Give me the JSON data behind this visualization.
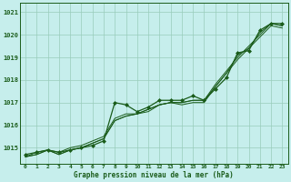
{
  "xlabel": "Graphe pression niveau de la mer (hPa)",
  "background_color": "#c6eeec",
  "grid_color": "#99ccbb",
  "line_color": "#1a5c1a",
  "marker_color": "#1a5c1a",
  "ylim": [
    1014.3,
    1021.4
  ],
  "xlim": [
    -0.5,
    23.5
  ],
  "yticks": [
    1015,
    1016,
    1017,
    1018,
    1019,
    1020,
    1021
  ],
  "xticks": [
    0,
    1,
    2,
    3,
    4,
    5,
    6,
    7,
    8,
    9,
    10,
    11,
    12,
    13,
    14,
    15,
    16,
    17,
    18,
    19,
    20,
    21,
    22,
    23
  ],
  "series": [
    [
      1014.7,
      1014.8,
      1014.9,
      1014.8,
      1014.9,
      1015.0,
      1015.1,
      1015.3,
      1017.0,
      1016.9,
      1016.6,
      1016.8,
      1017.1,
      1017.1,
      1017.1,
      1017.3,
      1017.1,
      1017.6,
      1018.1,
      1019.2,
      1019.3,
      1020.2,
      1020.5,
      1020.5
    ],
    [
      1014.6,
      1014.8,
      1014.9,
      1014.8,
      1015.0,
      1015.1,
      1015.3,
      1015.5,
      1016.3,
      1016.5,
      1016.5,
      1016.7,
      1016.9,
      1017.0,
      1017.0,
      1017.1,
      1017.1,
      1017.7,
      1018.3,
      1019.1,
      1019.4,
      1020.1,
      1020.5,
      1020.4
    ],
    [
      1014.6,
      1014.7,
      1014.9,
      1014.7,
      1014.9,
      1015.0,
      1015.2,
      1015.4,
      1016.2,
      1016.4,
      1016.5,
      1016.7,
      1016.9,
      1017.0,
      1017.0,
      1017.1,
      1017.1,
      1017.8,
      1018.4,
      1019.0,
      1019.5,
      1020.0,
      1020.5,
      1020.4
    ],
    [
      1014.6,
      1014.7,
      1014.9,
      1014.7,
      1014.9,
      1015.0,
      1015.2,
      1015.4,
      1016.2,
      1016.4,
      1016.5,
      1016.6,
      1016.9,
      1017.0,
      1016.9,
      1017.0,
      1017.0,
      1017.7,
      1018.3,
      1018.9,
      1019.4,
      1019.9,
      1020.4,
      1020.3
    ]
  ]
}
